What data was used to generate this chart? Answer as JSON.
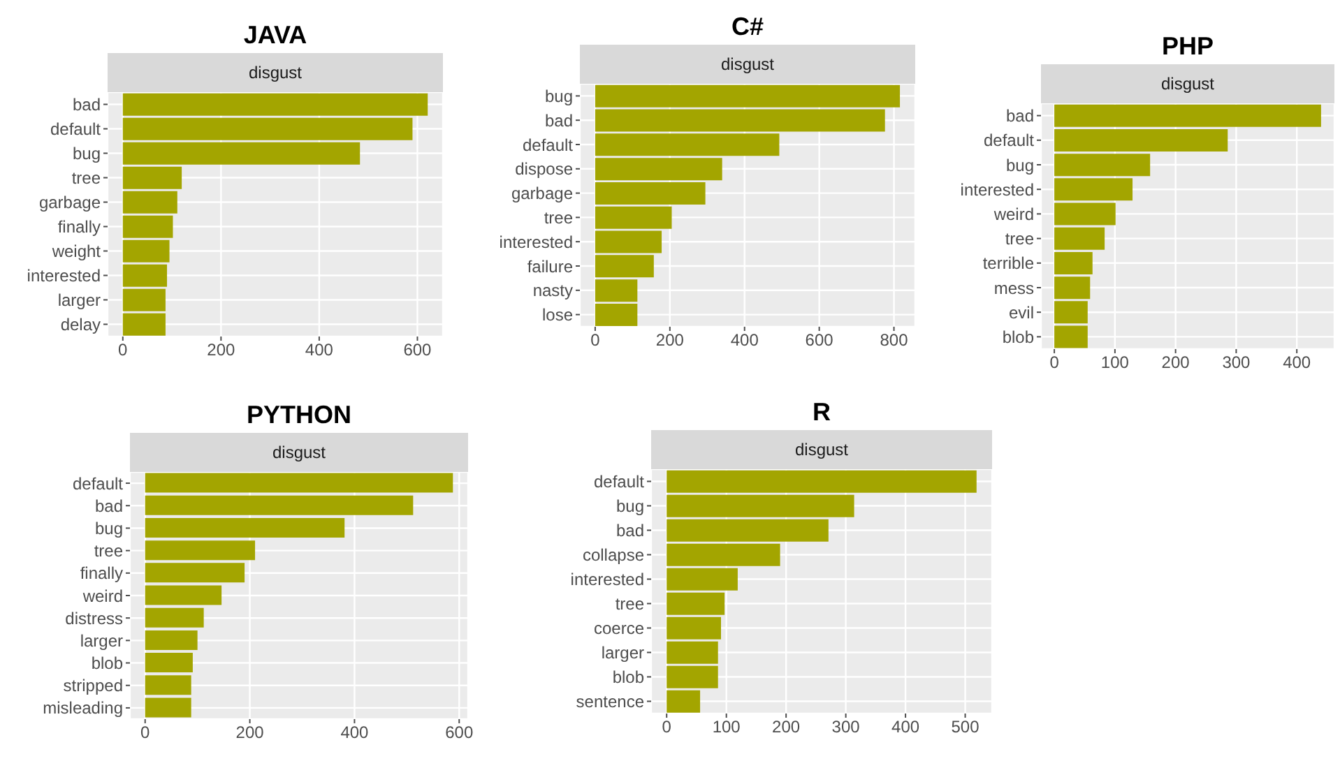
{
  "chart_data": [
    {
      "type": "bar",
      "orientation": "horizontal",
      "title": "JAVA",
      "subtitle": "disgust",
      "categories": [
        "bad",
        "default",
        "bug",
        "tree",
        "garbage",
        "finally",
        "weight",
        "interested",
        "larger",
        "delay"
      ],
      "values": [
        621,
        590,
        483,
        120,
        111,
        102,
        95,
        90,
        87,
        87
      ],
      "color": "#a3a500",
      "xlim": [
        -31,
        652
      ],
      "xticks": [
        0,
        200,
        400,
        600
      ],
      "grid": true,
      "legend": false
    },
    {
      "type": "bar",
      "orientation": "horizontal",
      "title": "C#",
      "subtitle": "disgust",
      "categories": [
        "bug",
        "bad",
        "default",
        "dispose",
        "garbage",
        "tree",
        "interested",
        "failure",
        "nasty",
        "lose"
      ],
      "values": [
        816,
        776,
        493,
        340,
        295,
        205,
        178,
        157,
        113,
        113
      ],
      "color": "#a3a500",
      "xlim": [
        -41,
        857
      ],
      "xticks": [
        0,
        200,
        400,
        600,
        800
      ],
      "grid": true,
      "legend": false
    },
    {
      "type": "bar",
      "orientation": "horizontal",
      "title": "PHP",
      "subtitle": "disgust",
      "categories": [
        "bad",
        "default",
        "bug",
        "interested",
        "weird",
        "tree",
        "terrible",
        "mess",
        "evil",
        "blob"
      ],
      "values": [
        440,
        286,
        158,
        129,
        101,
        83,
        63,
        59,
        55,
        55
      ],
      "color": "#a3a500",
      "xlim": [
        -22,
        462
      ],
      "xticks": [
        0,
        100,
        200,
        300,
        400
      ],
      "grid": true,
      "legend": false
    },
    {
      "type": "bar",
      "orientation": "horizontal",
      "title": "PYTHON",
      "subtitle": "disgust",
      "categories": [
        "default",
        "bad",
        "bug",
        "tree",
        "finally",
        "weird",
        "distress",
        "larger",
        "blob",
        "stripped",
        "misleading"
      ],
      "values": [
        588,
        512,
        381,
        210,
        190,
        146,
        112,
        100,
        91,
        88,
        88
      ],
      "color": "#a3a500",
      "xlim": [
        -29,
        617
      ],
      "xticks": [
        0,
        200,
        400,
        600
      ],
      "grid": true,
      "legend": false
    },
    {
      "type": "bar",
      "orientation": "horizontal",
      "title": "R",
      "subtitle": "disgust",
      "categories": [
        "default",
        "bug",
        "bad",
        "collapse",
        "interested",
        "tree",
        "coerce",
        "larger",
        "blob",
        "sentence"
      ],
      "values": [
        519,
        314,
        271,
        190,
        119,
        97,
        91,
        86,
        86,
        56
      ],
      "color": "#a3a500",
      "xlim": [
        -26,
        545
      ],
      "xticks": [
        0,
        100,
        200,
        300,
        400,
        500
      ],
      "grid": true,
      "legend": false
    }
  ]
}
